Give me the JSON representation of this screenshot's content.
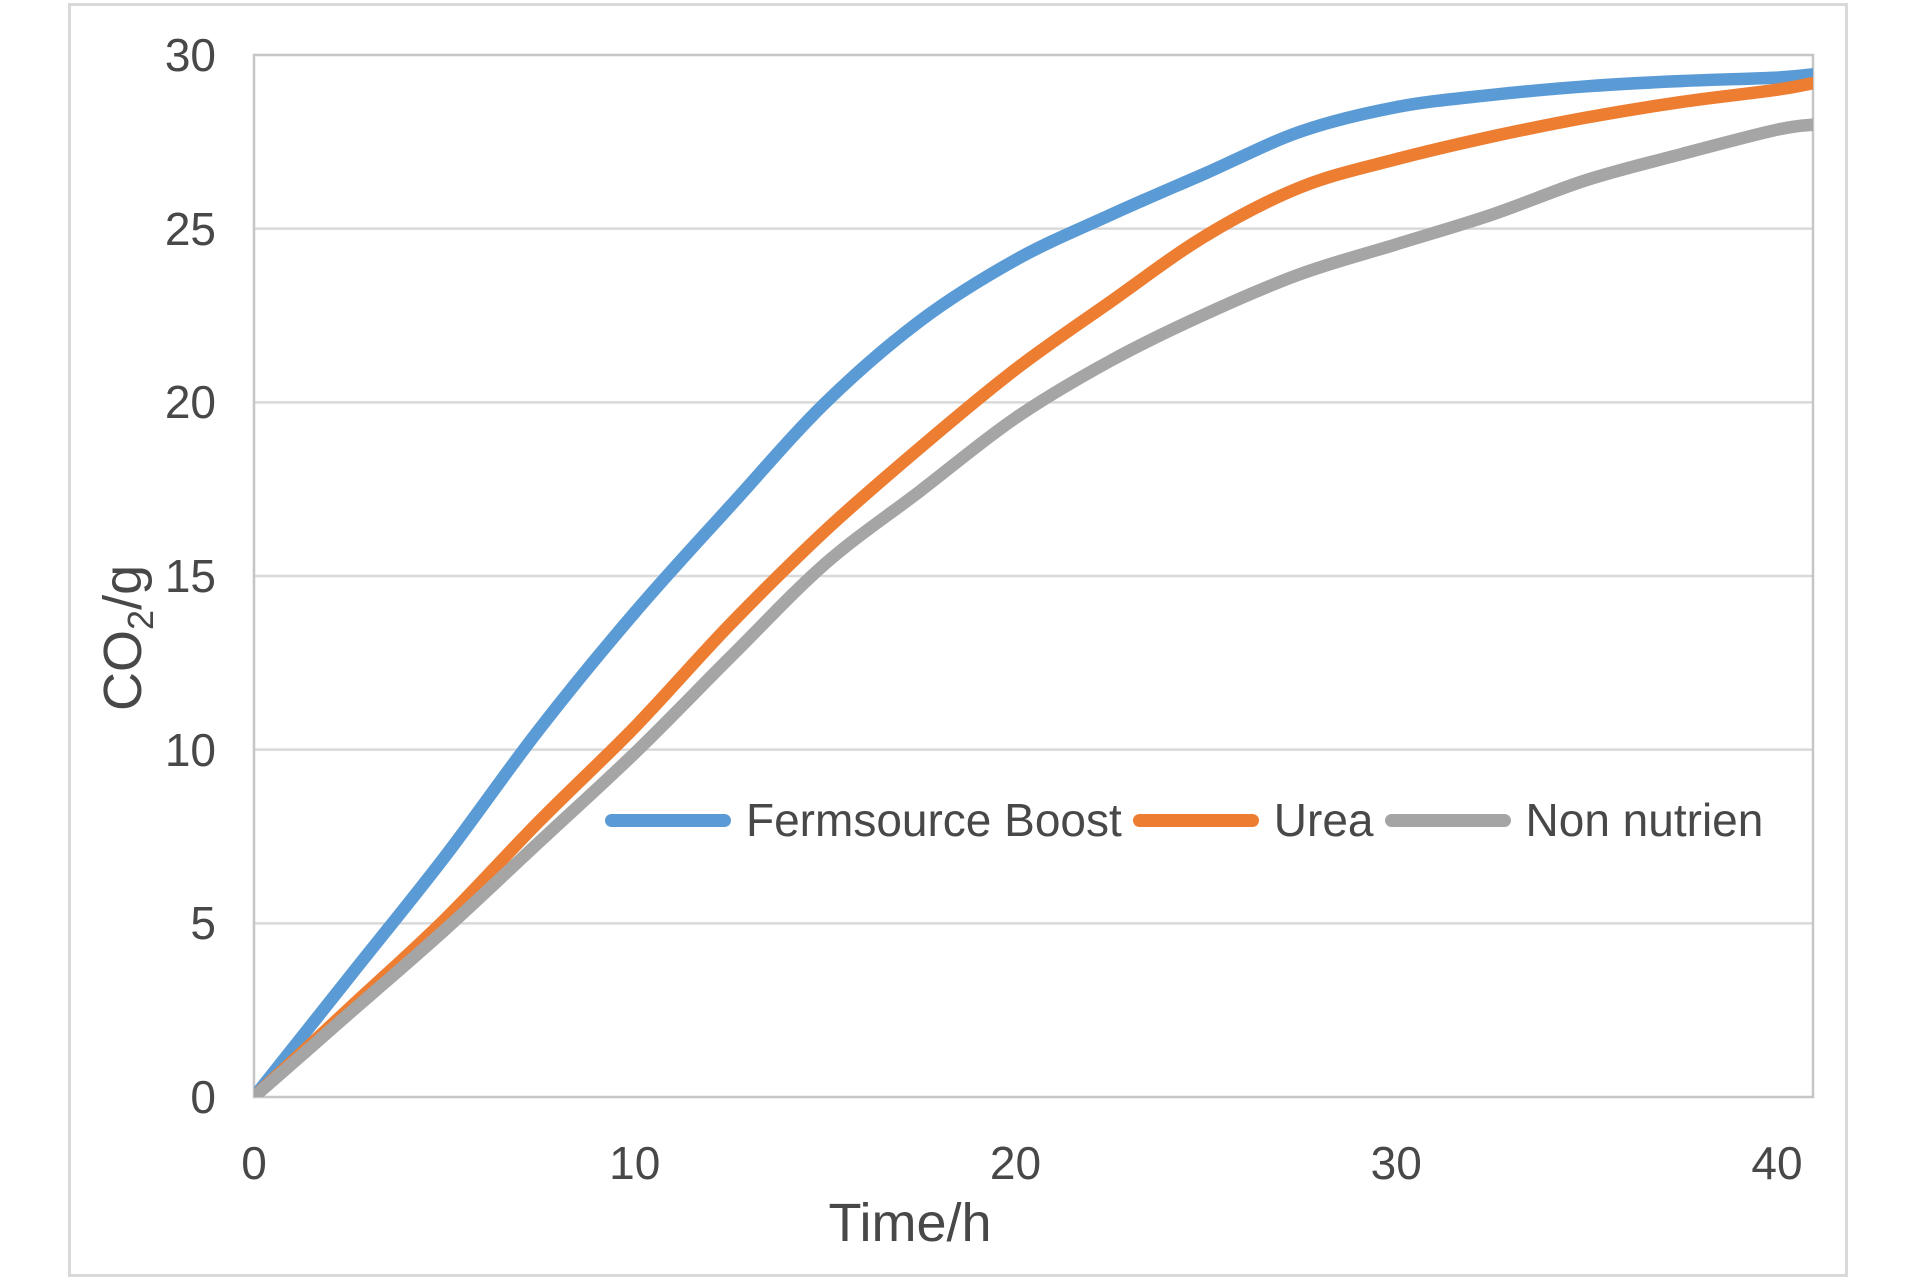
{
  "chart_data": {
    "type": "line",
    "title": "",
    "xlabel": "Time/h",
    "ylabel": "CO2/g",
    "ylabel_parts": {
      "prefix": "CO",
      "sub": "2",
      "suffix": "/g"
    },
    "x": [
      0,
      2.5,
      5,
      7.5,
      10,
      12.5,
      15,
      17.5,
      20,
      22.5,
      25,
      27.5,
      30,
      32.5,
      35,
      37.5,
      40,
      41
    ],
    "x_ticks": [
      0,
      10,
      20,
      30,
      40
    ],
    "y_ticks": [
      0,
      5,
      10,
      15,
      20,
      25,
      30
    ],
    "xlim": [
      0,
      40.9
    ],
    "ylim": [
      0,
      30
    ],
    "grid": "horizontal",
    "legend_position": "inside-middle",
    "series": [
      {
        "name": "Fermsource Boost",
        "color": "#5B9BD5",
        "values": [
          0,
          3.45,
          6.9,
          10.6,
          13.95,
          17.0,
          19.98,
          22.35,
          24.1,
          25.4,
          26.6,
          27.8,
          28.5,
          28.85,
          29.1,
          29.25,
          29.35,
          29.45
        ]
      },
      {
        "name": "Urea",
        "color": "#ED7D31",
        "values": [
          0,
          2.55,
          5.1,
          7.95,
          10.65,
          13.6,
          16.3,
          18.7,
          20.95,
          22.9,
          24.8,
          26.2,
          27.0,
          27.65,
          28.2,
          28.65,
          29.0,
          29.2
        ]
      },
      {
        "name": "Non nutrien",
        "color": "#A5A5A5",
        "values": [
          0,
          2.4,
          4.8,
          7.35,
          9.9,
          12.65,
          15.35,
          17.45,
          19.55,
          21.2,
          22.55,
          23.7,
          24.55,
          25.4,
          26.4,
          27.15,
          27.85,
          28.0
        ]
      }
    ],
    "colors": {
      "gridline": "#D9D9D9",
      "plot_border": "#C6C6C6",
      "text": "#484848",
      "frame_border": "#D9D9D9"
    }
  }
}
